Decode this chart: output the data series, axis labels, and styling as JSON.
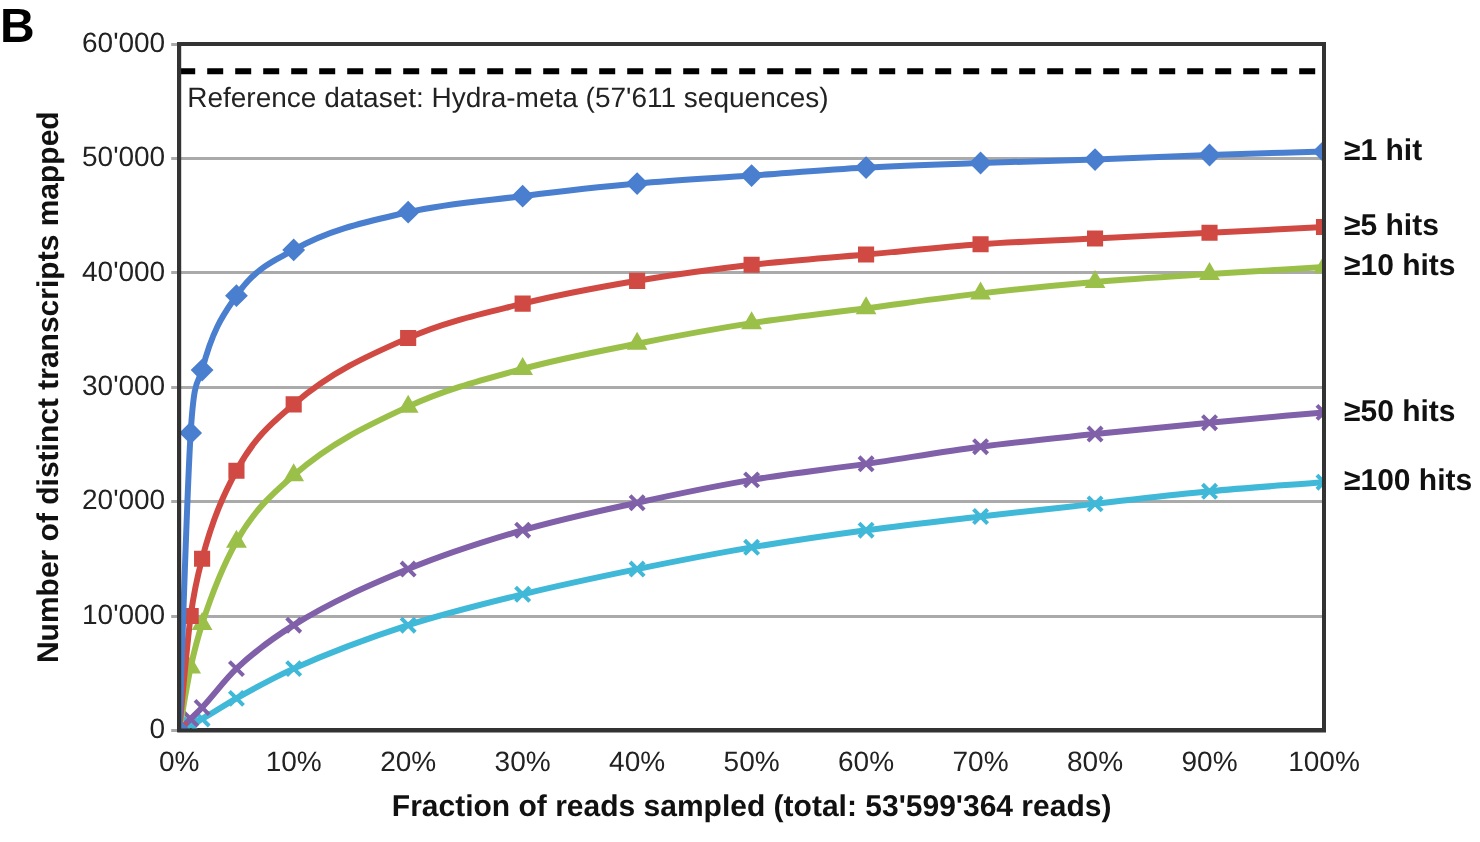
{
  "chart_data": {
    "type": "line",
    "xlabel": "Fraction of reads sampled (total: 53'599'364 reads)",
    "ylabel": "Number of distinct transcripts mapped",
    "annotations": [
      "B"
    ],
    "x": [
      0,
      1,
      2,
      5,
      10,
      20,
      30,
      40,
      50,
      60,
      70,
      80,
      90,
      100
    ],
    "xlim": [
      0,
      100
    ],
    "xticks": [
      {
        "value": 0,
        "label": "0%"
      },
      {
        "value": 10,
        "label": "10%"
      },
      {
        "value": 20,
        "label": "20%"
      },
      {
        "value": 30,
        "label": "30%"
      },
      {
        "value": 40,
        "label": "40%"
      },
      {
        "value": 50,
        "label": "50%"
      },
      {
        "value": 60,
        "label": "60%"
      },
      {
        "value": 70,
        "label": "70%"
      },
      {
        "value": 80,
        "label": "80%"
      },
      {
        "value": 90,
        "label": "90%"
      },
      {
        "value": 100,
        "label": "100%"
      }
    ],
    "ylim": [
      0,
      60000
    ],
    "yticks": [
      0,
      {
        "value": 10000,
        "label": "10'000"
      },
      {
        "value": 20000,
        "label": "20'000"
      },
      {
        "value": 30000,
        "label": "30'000"
      },
      {
        "value": 40000,
        "label": "40'000"
      },
      {
        "value": 50000,
        "label": "50'000"
      },
      {
        "value": 60000,
        "label": "60'000"
      }
    ],
    "grid": "y",
    "legend": false,
    "series": [
      {
        "name": "≥1 hit",
        "color": "#4a7fcf",
        "marker": "diamond",
        "values": [
          0,
          26000,
          31500,
          38000,
          42000,
          45300,
          46700,
          47800,
          48500,
          49200,
          49600,
          49900,
          50300,
          50600
        ]
      },
      {
        "name": "≥5 hits",
        "color": "#d04a43",
        "marker": "square",
        "values": [
          0,
          10000,
          15000,
          22700,
          28500,
          34300,
          37300,
          39300,
          40700,
          41600,
          42500,
          43000,
          43500,
          44000
        ]
      },
      {
        "name": "≥10 hits",
        "color": "#9bc04a",
        "marker": "triangle",
        "values": [
          0,
          5500,
          9300,
          16500,
          22300,
          28300,
          31600,
          33800,
          35600,
          36900,
          38200,
          39200,
          39900,
          40500
        ]
      },
      {
        "name": "≥50 hits",
        "color": "#8060a8",
        "marker": "cross",
        "values": [
          0,
          1000,
          2000,
          5400,
          9200,
          14100,
          17500,
          19900,
          21900,
          23300,
          24800,
          25900,
          26900,
          27800
        ]
      },
      {
        "name": "≥100 hits",
        "color": "#40b8d8",
        "marker": "cross",
        "values": [
          0,
          500,
          1000,
          2800,
          5400,
          9200,
          11900,
          14100,
          16000,
          17500,
          18700,
          19800,
          20900,
          21700
        ]
      }
    ],
    "ref_lines": [
      {
        "axis": "y",
        "value": 57611,
        "label": "Reference dataset: Hydra-meta (57'611 sequences)",
        "color": "#000000",
        "line_style": "dashed"
      }
    ]
  }
}
